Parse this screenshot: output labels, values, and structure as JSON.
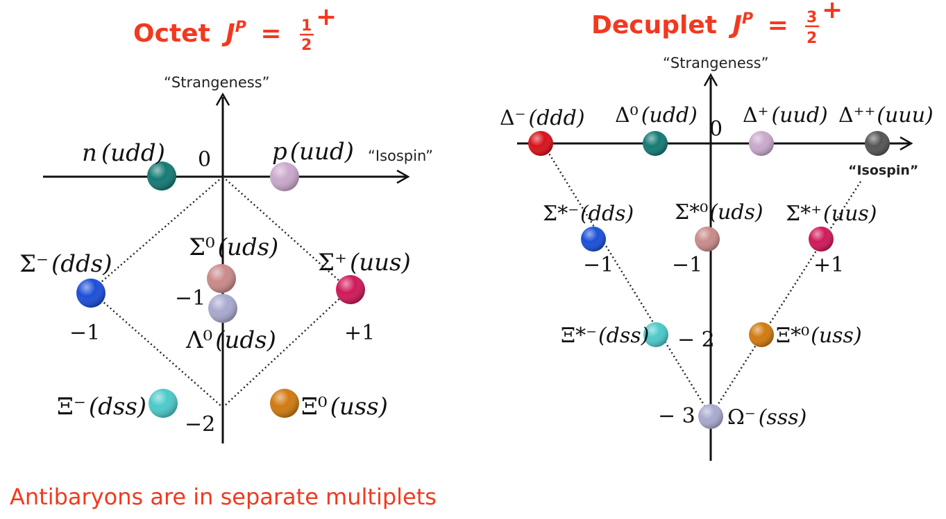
{
  "octet": {
    "title": "Octet",
    "jp": "J",
    "jp_sup": "P",
    "eq": "=",
    "frac_num": "1",
    "frac_den": "2",
    "parity": "+",
    "y_axis_label": "“Strangeness”",
    "x_axis_label": "“Isospin”",
    "levels": {
      "zero": "0",
      "minus1": "−1",
      "minus2": "−2"
    },
    "isospin_ticks": {
      "minus1": "−1",
      "plus1": "+1"
    },
    "particles": [
      {
        "symbol": "n",
        "quarks": "(udd)",
        "color": "#157a74"
      },
      {
        "symbol": "p",
        "quarks": "(uud)",
        "color": "#c9a8cc"
      },
      {
        "symbol": "Σ⁻",
        "quarks": "(dds)",
        "color": "#1b4fd8"
      },
      {
        "symbol": "Σ⁰",
        "quarks": "(uds)",
        "color": "#c98a8a"
      },
      {
        "symbol": "Σ⁺",
        "quarks": "(uus)",
        "color": "#d0185a"
      },
      {
        "symbol": "Λ⁰",
        "quarks": "(uds)",
        "color": "#a9a9cf"
      },
      {
        "symbol": "Ξ⁻",
        "quarks": "(dss)",
        "color": "#4cc9c9"
      },
      {
        "symbol": "Ξ⁰",
        "quarks": "(uss)",
        "color": "#d07a10"
      }
    ]
  },
  "decuplet": {
    "title": "Decuplet",
    "jp": "J",
    "jp_sup": "P",
    "eq": "=",
    "frac_num": "3",
    "frac_den": "2",
    "parity": "+",
    "y_axis_label": "“Strangeness”",
    "x_axis_label": "“Isospin”",
    "levels": {
      "zero": "0",
      "minus1": "−1",
      "minus2": "− 2",
      "minus3": "− 3"
    },
    "isospin_ticks": {
      "minus1": "−1",
      "plus1": "+1"
    },
    "particles": [
      {
        "symbol": "Δ⁻",
        "quarks": "(ddd)",
        "color": "#d8121b"
      },
      {
        "symbol": "Δ⁰",
        "quarks": "(udd)",
        "color": "#157a74"
      },
      {
        "symbol": "Δ⁺",
        "quarks": "(uud)",
        "color": "#c9a8cc"
      },
      {
        "symbol": "Δ⁺⁺",
        "quarks": "(uuu)",
        "color": "#555555"
      },
      {
        "symbol": "Σ*⁻",
        "quarks": "(dds)",
        "color": "#1b4fd8"
      },
      {
        "symbol": "Σ*⁰",
        "quarks": "(uds)",
        "color": "#c98a8a"
      },
      {
        "symbol": "Σ*⁺",
        "quarks": "(uus)",
        "color": "#d0185a"
      },
      {
        "symbol": "Ξ*⁻",
        "quarks": "(dss)",
        "color": "#4cc9c9"
      },
      {
        "symbol": "Ξ*⁰",
        "quarks": "(uss)",
        "color": "#d07a10"
      },
      {
        "symbol": "Ω⁻",
        "quarks": "(sss)",
        "color": "#a9a9cf"
      }
    ]
  },
  "footer": "Antibaryons are in separate multiplets"
}
